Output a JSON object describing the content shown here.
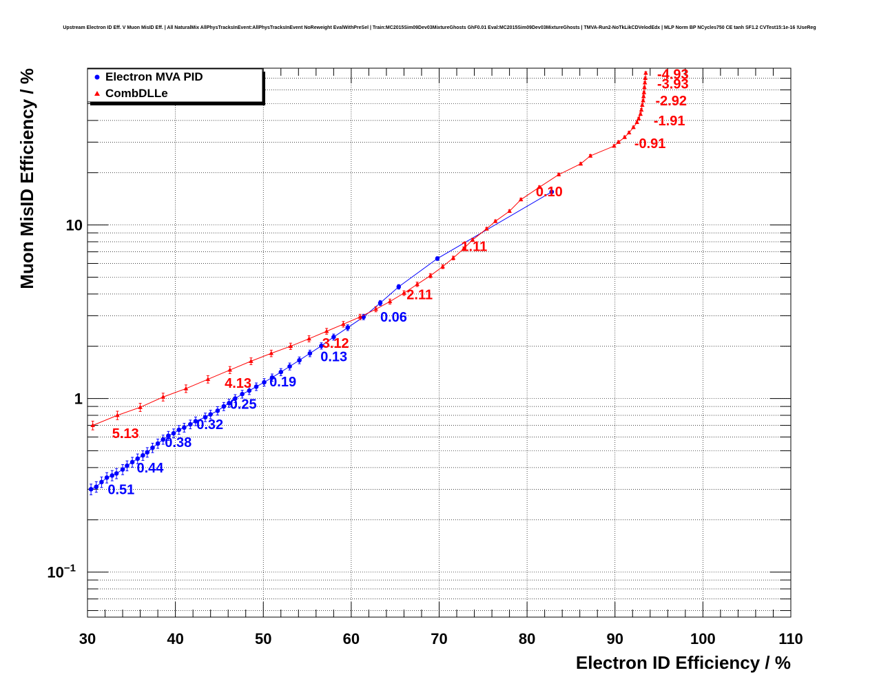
{
  "chart_data": {
    "type": "scatter",
    "title": "Upstream Electron ID Eff. V Muon MisID Eff. | All NaturalMix AllPhysTracksInEvent:AllPhysTracksInEvent NoReweight EvalWithPreSel | Train:MC2015Sim09Dev03MixtureGhosts GhF0.01 Eval:MC2015Sim09Dev03MixtureGhosts | TMVA-Run2-NoTkLikCDVelodEdx | MLP Norm BP NCycles750 CE tanh SF1.2 CVTest15:1e-16 !UseReg",
    "xlabel": "Electron ID Efficiency / %",
    "ylabel": "Muon MisID Efficiency / %",
    "xlim": [
      30,
      110
    ],
    "ylim": [
      0.055,
      80
    ],
    "y_scale": "log",
    "grid": true,
    "x_ticks": [
      "30",
      "40",
      "50",
      "60",
      "70",
      "80",
      "90",
      "100",
      "110"
    ],
    "y_ticks": [
      {
        "value": 0.1,
        "base": "10",
        "exp": "−1"
      },
      {
        "value": 1,
        "base": "1",
        "exp": ""
      },
      {
        "value": 10,
        "base": "10",
        "exp": ""
      }
    ],
    "legend": {
      "placement": "top-left",
      "entries": [
        {
          "label": "Electron MVA PID",
          "series": 0
        },
        {
          "label": "CombDLLe",
          "series": 1
        }
      ]
    },
    "series": [
      {
        "name": "Electron MVA PID",
        "color": "#0000ff",
        "marker": "circle",
        "points": [
          [
            30.4,
            0.3
          ],
          [
            31.0,
            0.31
          ],
          [
            31.6,
            0.33
          ],
          [
            32.2,
            0.35
          ],
          [
            32.8,
            0.36
          ],
          [
            33.3,
            0.37
          ],
          [
            34.0,
            0.39
          ],
          [
            34.5,
            0.41
          ],
          [
            35.1,
            0.43
          ],
          [
            35.7,
            0.45
          ],
          [
            36.3,
            0.47
          ],
          [
            36.8,
            0.49
          ],
          [
            37.4,
            0.52
          ],
          [
            38.0,
            0.55
          ],
          [
            38.6,
            0.58
          ],
          [
            39.2,
            0.61
          ],
          [
            39.8,
            0.63
          ],
          [
            40.4,
            0.66
          ],
          [
            41.0,
            0.68
          ],
          [
            41.7,
            0.71
          ],
          [
            42.3,
            0.74
          ],
          [
            43.4,
            0.78
          ],
          [
            44.0,
            0.81
          ],
          [
            44.8,
            0.85
          ],
          [
            45.5,
            0.9
          ],
          [
            46.1,
            0.94
          ],
          [
            46.8,
            1.0
          ],
          [
            47.6,
            1.06
          ],
          [
            48.4,
            1.11
          ],
          [
            49.2,
            1.17
          ],
          [
            50.1,
            1.24
          ],
          [
            51.0,
            1.32
          ],
          [
            52.0,
            1.42
          ],
          [
            53.0,
            1.53
          ],
          [
            54.1,
            1.66
          ],
          [
            55.3,
            1.82
          ],
          [
            56.6,
            2.01
          ],
          [
            58.0,
            2.26
          ],
          [
            59.6,
            2.56
          ],
          [
            61.4,
            2.95
          ],
          [
            63.3,
            3.55
          ],
          [
            65.4,
            4.4
          ],
          [
            69.8,
            6.4
          ],
          [
            82.8,
            15.5
          ]
        ],
        "labels": [
          {
            "text": "0.51",
            "x": 32.3,
            "y": 0.3
          },
          {
            "text": "0.44",
            "x": 35.6,
            "y": 0.4
          },
          {
            "text": "0.38",
            "x": 38.8,
            "y": 0.56
          },
          {
            "text": "0.32",
            "x": 42.4,
            "y": 0.71
          },
          {
            "text": "0.25",
            "x": 46.2,
            "y": 0.93
          },
          {
            "text": "0.19",
            "x": 50.7,
            "y": 1.25
          },
          {
            "text": "0.13",
            "x": 56.5,
            "y": 1.75
          },
          {
            "text": "0.06",
            "x": 63.3,
            "y": 2.95
          }
        ]
      },
      {
        "name": "CombDLLe",
        "color": "#ff0000",
        "marker": "triangle",
        "points": [
          [
            30.6,
            0.7
          ],
          [
            33.4,
            0.8
          ],
          [
            36.0,
            0.89
          ],
          [
            38.6,
            1.02
          ],
          [
            41.2,
            1.14
          ],
          [
            43.7,
            1.29
          ],
          [
            46.2,
            1.46
          ],
          [
            48.6,
            1.64
          ],
          [
            50.9,
            1.82
          ],
          [
            53.1,
            2.0
          ],
          [
            55.2,
            2.21
          ],
          [
            57.2,
            2.44
          ],
          [
            59.1,
            2.68
          ],
          [
            61.0,
            2.95
          ],
          [
            62.8,
            3.27
          ],
          [
            64.4,
            3.62
          ],
          [
            66.0,
            4.05
          ],
          [
            67.5,
            4.55
          ],
          [
            69.0,
            5.1
          ],
          [
            70.4,
            5.75
          ],
          [
            71.6,
            6.45
          ],
          [
            72.8,
            7.3
          ],
          [
            73.8,
            8.2
          ],
          [
            75.4,
            9.5
          ],
          [
            76.4,
            10.5
          ],
          [
            78.0,
            12.0
          ],
          [
            79.3,
            14.0
          ],
          [
            81.4,
            16.5
          ],
          [
            83.6,
            19.5
          ],
          [
            86.1,
            22.5
          ],
          [
            87.2,
            25.0
          ],
          [
            89.9,
            28.5
          ],
          [
            90.4,
            30.0
          ],
          [
            91.1,
            32.0
          ],
          [
            91.6,
            34.0
          ],
          [
            92.1,
            36.5
          ],
          [
            92.5,
            39.0
          ],
          [
            92.7,
            41.0
          ],
          [
            92.9,
            43.5
          ],
          [
            93.0,
            46.0
          ],
          [
            93.1,
            49.0
          ],
          [
            93.2,
            52.0
          ],
          [
            93.25,
            55.0
          ],
          [
            93.3,
            58.0
          ],
          [
            93.35,
            62.0
          ],
          [
            93.4,
            66.0
          ],
          [
            93.45,
            70.0
          ],
          [
            93.5,
            75.0
          ]
        ],
        "labels": [
          {
            "text": "5.13",
            "x": 32.8,
            "y": 0.63
          },
          {
            "text": "4.13",
            "x": 45.6,
            "y": 1.23
          },
          {
            "text": "3.12",
            "x": 56.7,
            "y": 2.09
          },
          {
            "text": "2.11",
            "x": 66.3,
            "y": 3.97
          },
          {
            "text": "1.11",
            "x": 72.5,
            "y": 7.55
          },
          {
            "text": "0.10",
            "x": 81.0,
            "y": 15.6
          },
          {
            "text": "-0.91",
            "x": 92.2,
            "y": 29.5
          },
          {
            "text": "-1.91",
            "x": 94.4,
            "y": 40.0
          },
          {
            "text": "-2.92",
            "x": 94.6,
            "y": 52.0
          },
          {
            "text": "-3.93",
            "x": 94.8,
            "y": 65.0
          },
          {
            "text": "-4.93",
            "x": 94.8,
            "y": 74.0
          }
        ]
      }
    ]
  }
}
